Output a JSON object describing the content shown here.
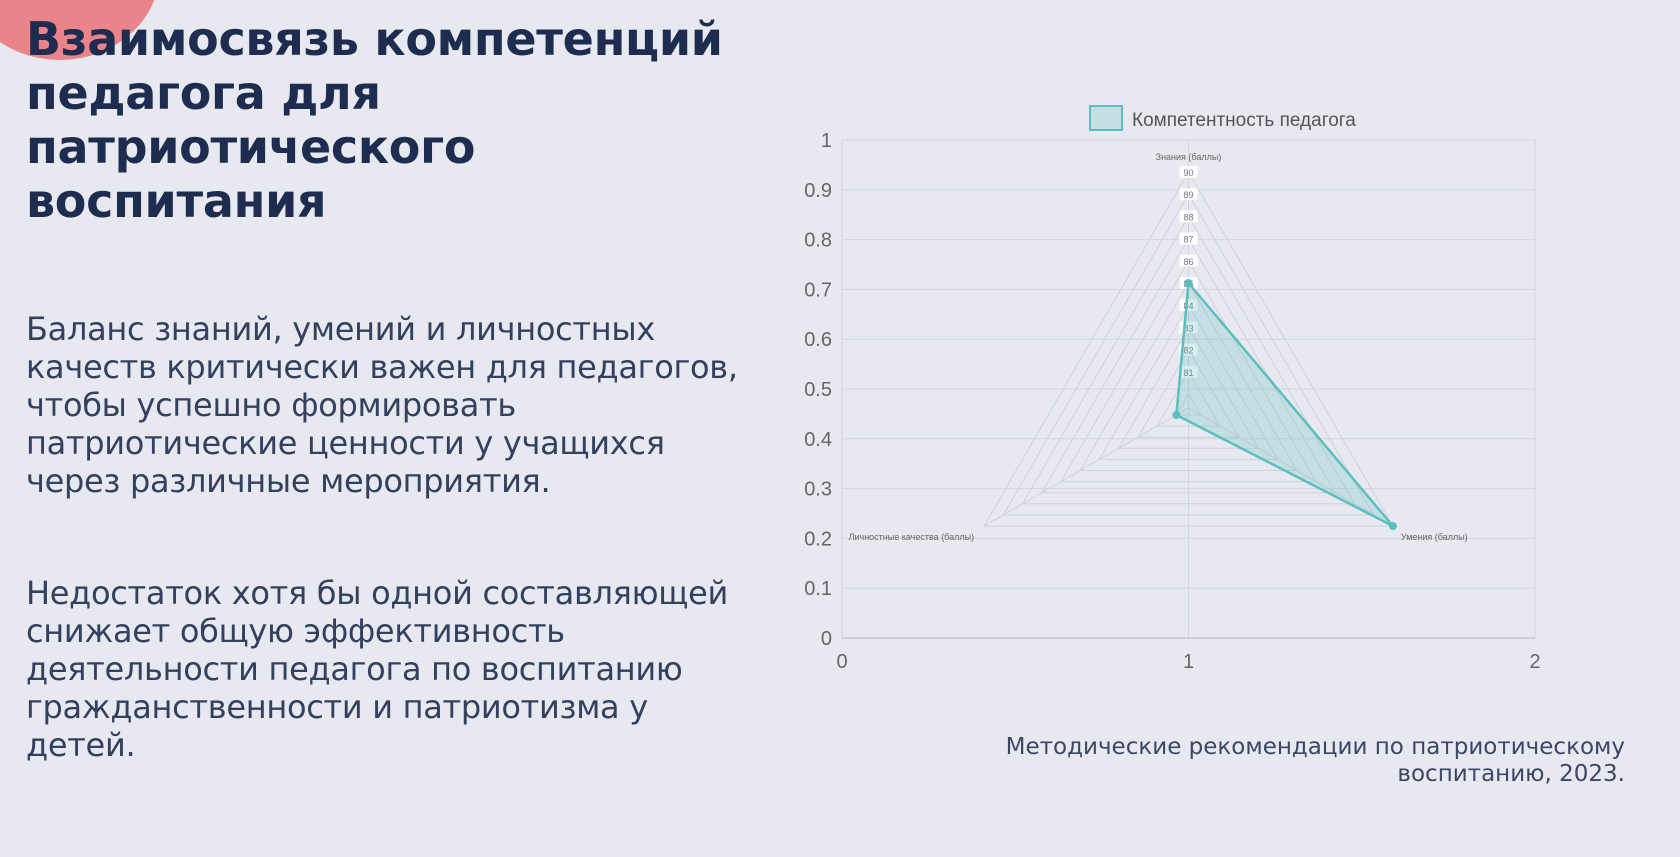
{
  "slide": {
    "title": "Взаимосвязь компетенций педагога для патриотического воспитания",
    "paragraph1": "Баланс знаний, умений и личностных качеств критически важен для педагогов, чтобы успешно формировать патриотические ценности у учащихся через различные мероприятия.",
    "paragraph2": "Недостаток хотя бы одной составляющей снижает общую эффективность деятельности педагога по воспитанию гражданственности и патриотизма у детей.",
    "source": "Методические рекомендации по патриотическому воспитанию, 2023.",
    "accent_color": "#e8848a"
  },
  "chart_data": {
    "type": "radar",
    "legend": {
      "label": "Компетентность педагога",
      "placement": "top"
    },
    "series_color": "#5bbfc0",
    "axes": [
      "Знания (баллы)",
      "Умения (баллы)",
      "Личностные качества (баллы)"
    ],
    "radial_range": [
      80,
      90
    ],
    "radial_ticks": [
      "81",
      "82",
      "83",
      "84",
      "85",
      "86",
      "87",
      "88",
      "89",
      "90"
    ],
    "values": [
      85,
      90,
      80
    ],
    "cartesian_overlay": {
      "x_ticks": [
        "0",
        "1",
        "2"
      ],
      "x_range": [
        0,
        2
      ],
      "y_ticks": [
        "0",
        "0.1",
        "0.2",
        "0.3",
        "0.4",
        "0.5",
        "0.6",
        "0.7",
        "0.8",
        "0.9",
        "1"
      ],
      "y_range": [
        0,
        1
      ],
      "grid": true
    }
  }
}
